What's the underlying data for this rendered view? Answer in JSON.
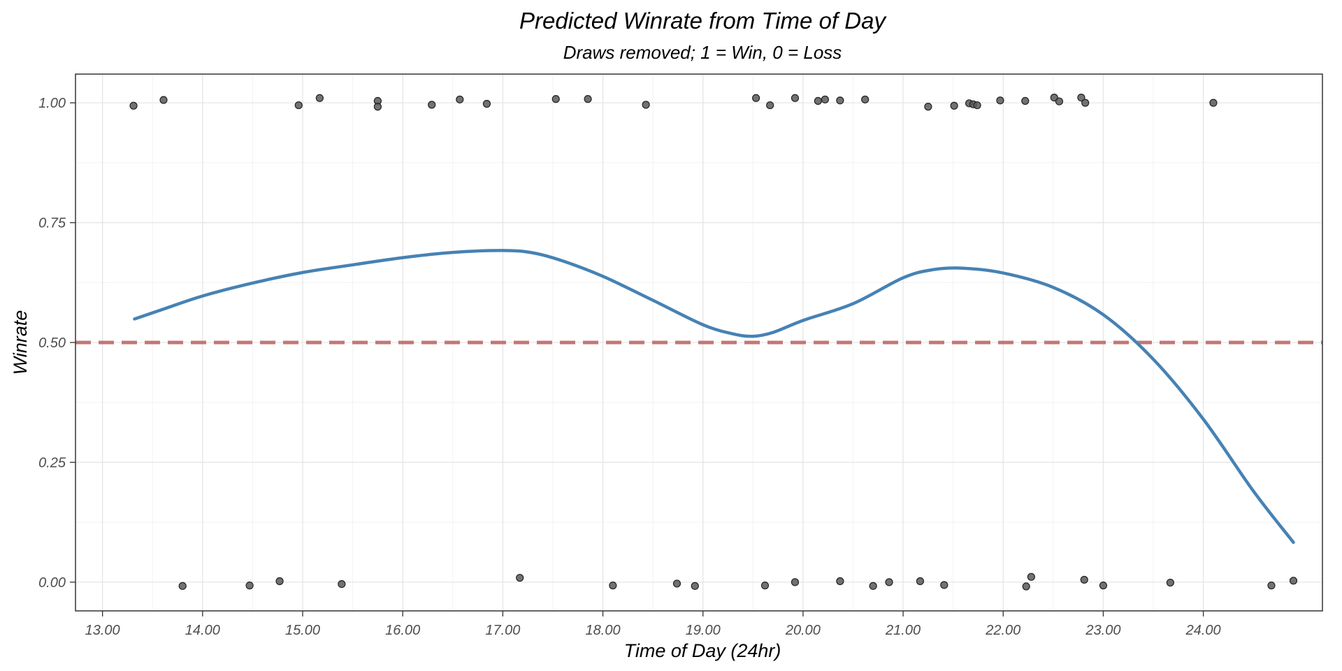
{
  "chart_data": {
    "type": "scatter",
    "title": "Predicted Winrate from Time of Day",
    "subtitle": "Draws removed; 1 = Win, 0 = Loss",
    "xlabel": "Time of Day (24hr)",
    "ylabel": "Winrate",
    "xlim": [
      12.73,
      25.19
    ],
    "ylim": [
      -0.06,
      1.06
    ],
    "x_ticks": [
      13,
      14,
      15,
      16,
      17,
      18,
      19,
      20,
      21,
      22,
      23,
      24
    ],
    "x_tick_labels": [
      "13.00",
      "14.00",
      "15.00",
      "16.00",
      "17.00",
      "18.00",
      "19.00",
      "20.00",
      "21.00",
      "22.00",
      "23.00",
      "24.00"
    ],
    "y_ticks": [
      0,
      0.25,
      0.5,
      0.75,
      1
    ],
    "y_tick_labels": [
      "0.00",
      "0.25",
      "0.50",
      "0.75",
      "1.00"
    ],
    "grid": true,
    "reference_line": {
      "y": 0.5,
      "style": "dashed",
      "color": "#c0706f"
    },
    "points_color": "#595959",
    "smooth_color": "#4682b4",
    "points": [
      {
        "x": 13.31,
        "y": 0.994
      },
      {
        "x": 13.61,
        "y": 1.006
      },
      {
        "x": 14.96,
        "y": 0.995
      },
      {
        "x": 15.17,
        "y": 1.01
      },
      {
        "x": 15.75,
        "y": 1.004
      },
      {
        "x": 15.75,
        "y": 0.992
      },
      {
        "x": 16.29,
        "y": 0.996
      },
      {
        "x": 16.57,
        "y": 1.007
      },
      {
        "x": 16.84,
        "y": 0.998
      },
      {
        "x": 17.53,
        "y": 1.008
      },
      {
        "x": 17.85,
        "y": 1.008
      },
      {
        "x": 18.43,
        "y": 0.996
      },
      {
        "x": 19.53,
        "y": 1.01
      },
      {
        "x": 19.67,
        "y": 0.995
      },
      {
        "x": 19.92,
        "y": 1.01
      },
      {
        "x": 20.15,
        "y": 1.004
      },
      {
        "x": 20.22,
        "y": 1.007
      },
      {
        "x": 20.37,
        "y": 1.005
      },
      {
        "x": 20.62,
        "y": 1.007
      },
      {
        "x": 21.25,
        "y": 0.992
      },
      {
        "x": 21.51,
        "y": 0.994
      },
      {
        "x": 21.66,
        "y": 0.999
      },
      {
        "x": 21.7,
        "y": 0.997
      },
      {
        "x": 21.74,
        "y": 0.995
      },
      {
        "x": 21.97,
        "y": 1.005
      },
      {
        "x": 22.22,
        "y": 1.004
      },
      {
        "x": 22.51,
        "y": 1.011
      },
      {
        "x": 22.56,
        "y": 1.003
      },
      {
        "x": 22.78,
        "y": 1.011
      },
      {
        "x": 22.82,
        "y": 1.0
      },
      {
        "x": 24.1,
        "y": 1.0
      },
      {
        "x": 13.8,
        "y": -0.008
      },
      {
        "x": 14.47,
        "y": -0.007
      },
      {
        "x": 14.77,
        "y": 0.002
      },
      {
        "x": 15.39,
        "y": -0.004
      },
      {
        "x": 17.17,
        "y": 0.009
      },
      {
        "x": 18.1,
        "y": -0.007
      },
      {
        "x": 18.74,
        "y": -0.003
      },
      {
        "x": 18.92,
        "y": -0.008
      },
      {
        "x": 19.62,
        "y": -0.007
      },
      {
        "x": 19.92,
        "y": 0.0
      },
      {
        "x": 20.37,
        "y": 0.002
      },
      {
        "x": 20.7,
        "y": -0.008
      },
      {
        "x": 20.86,
        "y": 0.0
      },
      {
        "x": 21.17,
        "y": 0.002
      },
      {
        "x": 21.41,
        "y": -0.006
      },
      {
        "x": 22.23,
        "y": -0.009
      },
      {
        "x": 22.28,
        "y": 0.011
      },
      {
        "x": 22.81,
        "y": 0.005
      },
      {
        "x": 23.0,
        "y": -0.007
      },
      {
        "x": 23.67,
        "y": -0.001
      },
      {
        "x": 24.68,
        "y": -0.007
      },
      {
        "x": 24.9,
        "y": 0.003
      }
    ],
    "smooth_line": [
      {
        "x": 13.32,
        "y": 0.549
      },
      {
        "x": 13.6,
        "y": 0.569
      },
      {
        "x": 14.0,
        "y": 0.597
      },
      {
        "x": 14.5,
        "y": 0.624
      },
      {
        "x": 15.0,
        "y": 0.646
      },
      {
        "x": 15.5,
        "y": 0.662
      },
      {
        "x": 16.0,
        "y": 0.677
      },
      {
        "x": 16.5,
        "y": 0.688
      },
      {
        "x": 17.0,
        "y": 0.692
      },
      {
        "x": 17.3,
        "y": 0.687
      },
      {
        "x": 17.6,
        "y": 0.67
      },
      {
        "x": 18.0,
        "y": 0.638
      },
      {
        "x": 18.5,
        "y": 0.588
      },
      {
        "x": 19.0,
        "y": 0.537
      },
      {
        "x": 19.3,
        "y": 0.518
      },
      {
        "x": 19.5,
        "y": 0.513
      },
      {
        "x": 19.7,
        "y": 0.521
      },
      {
        "x": 20.0,
        "y": 0.546
      },
      {
        "x": 20.5,
        "y": 0.581
      },
      {
        "x": 21.0,
        "y": 0.635
      },
      {
        "x": 21.3,
        "y": 0.652
      },
      {
        "x": 21.6,
        "y": 0.655
      },
      {
        "x": 22.0,
        "y": 0.645
      },
      {
        "x": 22.5,
        "y": 0.615
      },
      {
        "x": 23.0,
        "y": 0.558
      },
      {
        "x": 23.5,
        "y": 0.465
      },
      {
        "x": 24.0,
        "y": 0.34
      },
      {
        "x": 24.5,
        "y": 0.19
      },
      {
        "x": 24.9,
        "y": 0.083
      }
    ]
  }
}
